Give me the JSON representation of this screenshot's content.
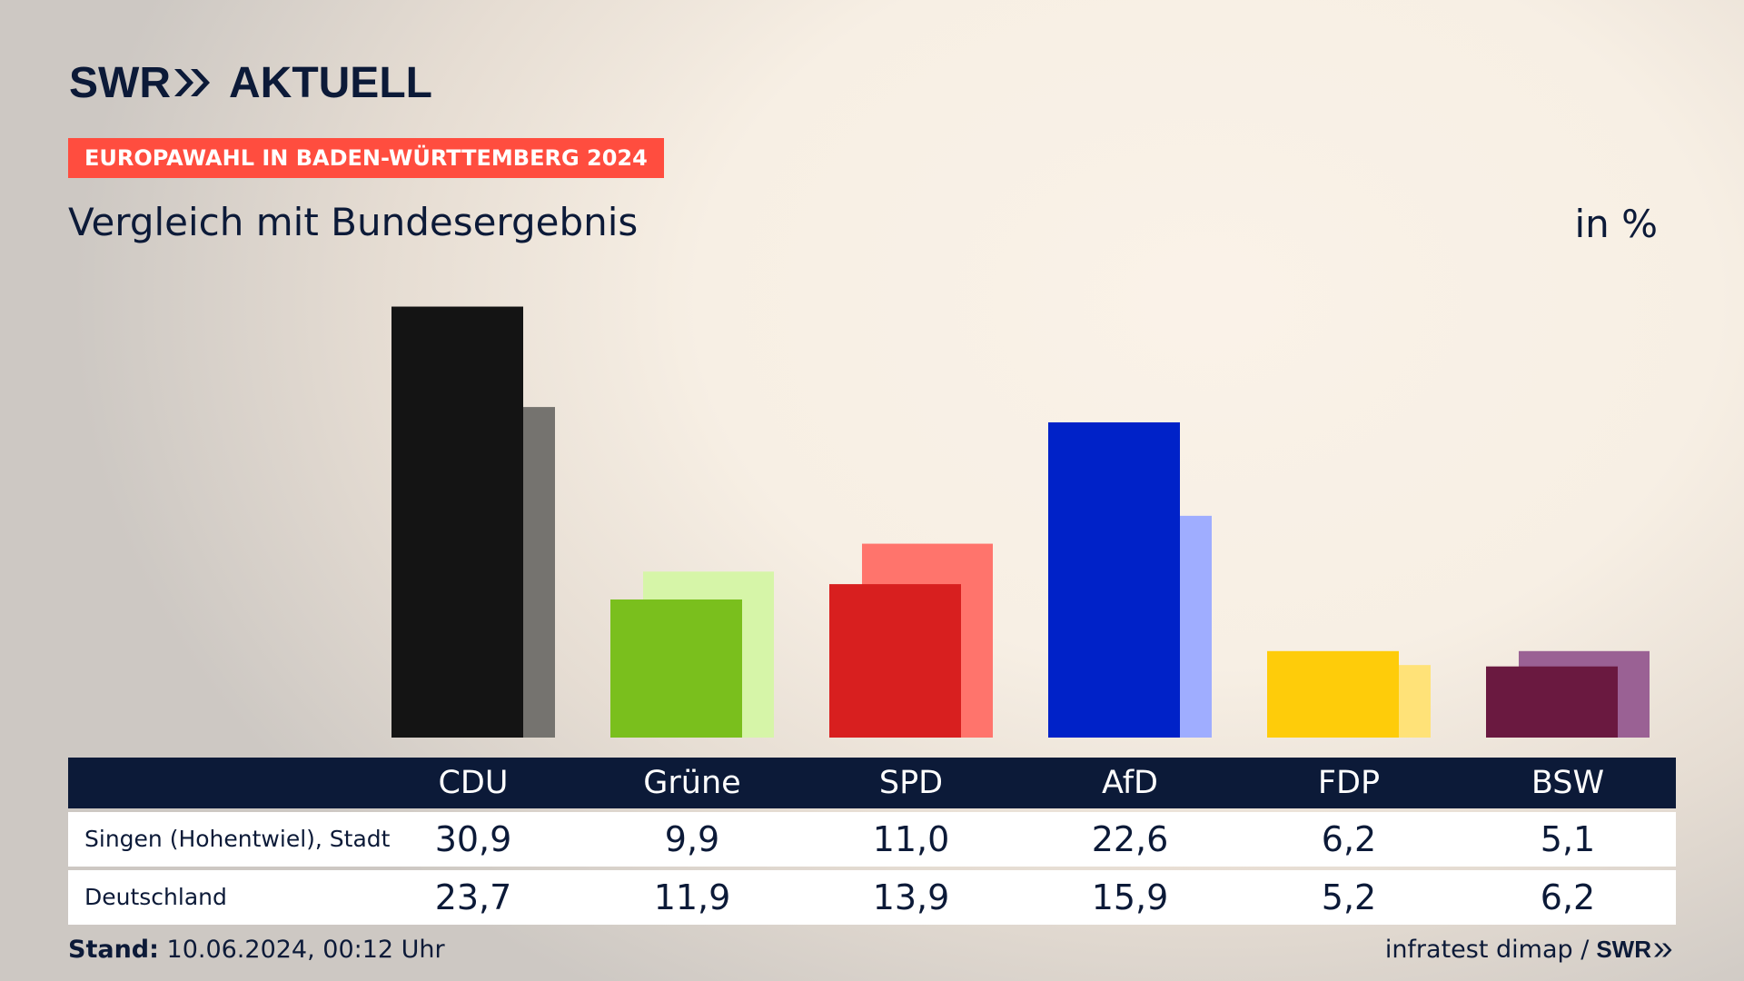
{
  "header": {
    "logo_swr": "SWR",
    "logo_aktuell": "AKTUELL",
    "badge": "EUROPAWAHL IN BADEN-WÜRTTEMBERG 2024",
    "subtitle": "Vergleich mit Bundesergebnis",
    "unit": "in %"
  },
  "table": {
    "rows": [
      {
        "label": "Singen (Hohentwiel), Stadt",
        "values": [
          "30,9",
          "9,9",
          "11,0",
          "22,6",
          "6,2",
          "5,1"
        ]
      },
      {
        "label": "Deutschland",
        "values": [
          "23,7",
          "11,9",
          "13,9",
          "15,9",
          "5,2",
          "6,2"
        ]
      }
    ]
  },
  "footer": {
    "stand_label": "Stand:",
    "stand_value": "10.06.2024, 00:12 Uhr",
    "source": "infratest dimap /",
    "source_logo": "SWR"
  },
  "chart_data": {
    "type": "bar",
    "categories": [
      "CDU",
      "Grüne",
      "SPD",
      "AfD",
      "FDP",
      "BSW"
    ],
    "series": [
      {
        "name": "Singen (Hohentwiel), Stadt",
        "values": [
          30.9,
          9.9,
          11.0,
          22.6,
          6.2,
          5.1
        ]
      },
      {
        "name": "Deutschland",
        "values": [
          23.7,
          11.9,
          13.9,
          15.9,
          5.2,
          6.2
        ]
      }
    ],
    "colors": {
      "primary": [
        "#141414",
        "#7abf1d",
        "#d81f1f",
        "#0022c8",
        "#fecc0a",
        "#6a1940"
      ],
      "secondary": [
        "#75736f",
        "#d6f5a8",
        "#ff746c",
        "#9fadff",
        "#ffe278",
        "#9a6194"
      ]
    },
    "ylim": [
      0,
      31
    ]
  }
}
